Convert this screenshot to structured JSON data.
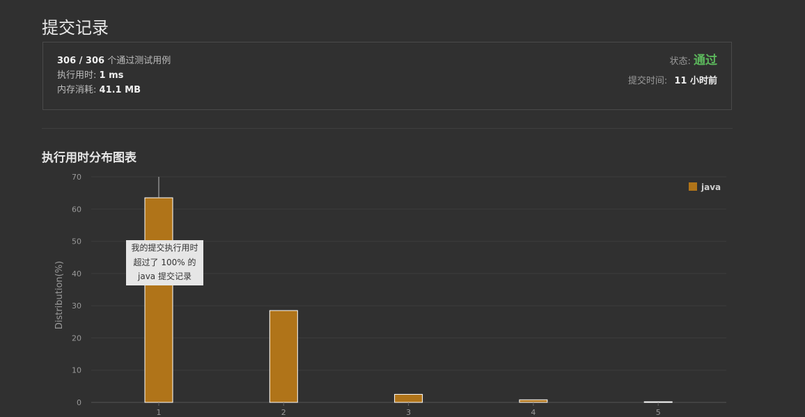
{
  "page": {
    "title": "提交记录"
  },
  "summary": {
    "passed": "306 / 306",
    "passed_suffix": "个通过测试用例",
    "runtime_label": "执行用时:",
    "runtime_value": "1 ms",
    "memory_label": "内存消耗:",
    "memory_value": "41.1 MB",
    "status_label": "状态:",
    "status_value": "通过",
    "submit_time_label": "提交时间:",
    "submit_time_value": "11 小时前"
  },
  "chart_section": {
    "title": "执行用时分布图表"
  },
  "tooltip": {
    "line1": "我的提交执行用时",
    "line2": "超过了 100% 的",
    "line3": "java 提交记录"
  },
  "colors": {
    "bar": "#b07419",
    "status_pass": "#5cb85c",
    "background": "#303030"
  },
  "chart_data": {
    "type": "bar",
    "categories": [
      "1",
      "2",
      "3",
      "4",
      "5"
    ],
    "series": [
      {
        "name": "java",
        "values": [
          63.5,
          28.5,
          2.5,
          0.8,
          0.2
        ]
      }
    ],
    "ylabel": "Distribution(%)",
    "xlabel": "",
    "ylim": [
      0,
      70
    ],
    "yticks": [
      0,
      10,
      20,
      30,
      40,
      50,
      60,
      70
    ],
    "grid": true,
    "legend": "top-right",
    "highlight_category": "1"
  }
}
